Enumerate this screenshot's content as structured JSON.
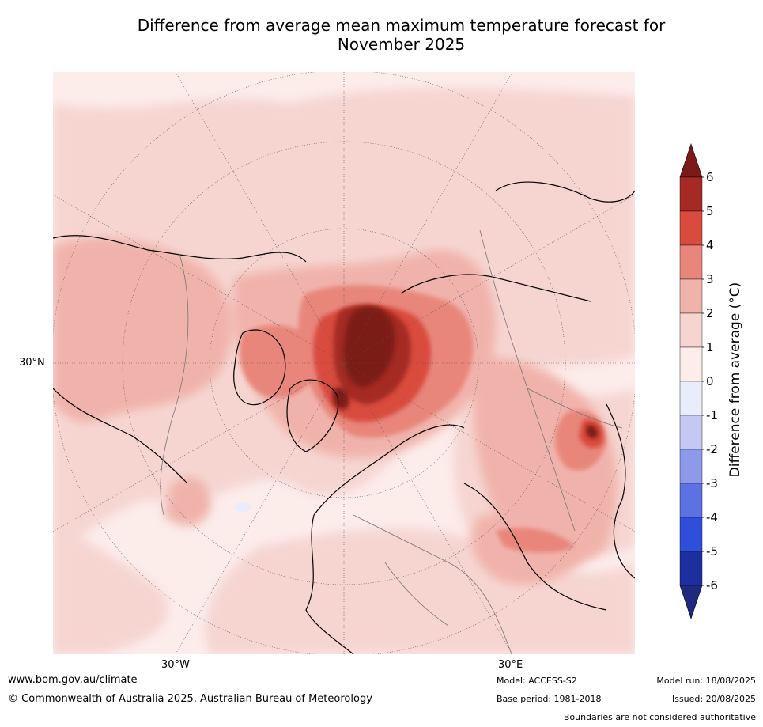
{
  "title_line1": "Difference from average mean maximum temperature forecast for",
  "title_line2": "November 2025",
  "axis": {
    "lat_label": "30°N",
    "lon_labels": [
      "30°W",
      "30°E"
    ]
  },
  "colorbar": {
    "label": "Difference from average (°C)",
    "ticks": [
      "6",
      "5",
      "4",
      "3",
      "2",
      "1",
      "0",
      "-1",
      "-2",
      "-3",
      "-4",
      "-5",
      "-6"
    ],
    "colors": [
      "#7b1b17",
      "#a52a24",
      "#d94b3e",
      "#e8867c",
      "#f0b3ab",
      "#f6d5d1",
      "#fcecea",
      "#e9ecfa",
      "#c3c9f2",
      "#8d9aea",
      "#5c72e2",
      "#2f4ed9",
      "#1d2f9e",
      "#1d2a80"
    ],
    "overflow_top": "#7b1b17",
    "overflow_bottom": "#1d2a80"
  },
  "footer": {
    "website": "www.bom.gov.au/climate",
    "copyright": "© Commonwealth of Australia 2025, Australian Bureau of Meteorology",
    "model": "Model: ACCESS-S2",
    "base_period": "Base period: 1981-2018",
    "model_run": "Model run: 18/08/2025",
    "issued": "Issued: 20/08/2025",
    "disclaimer": "Boundaries are not considered authoritative"
  }
}
